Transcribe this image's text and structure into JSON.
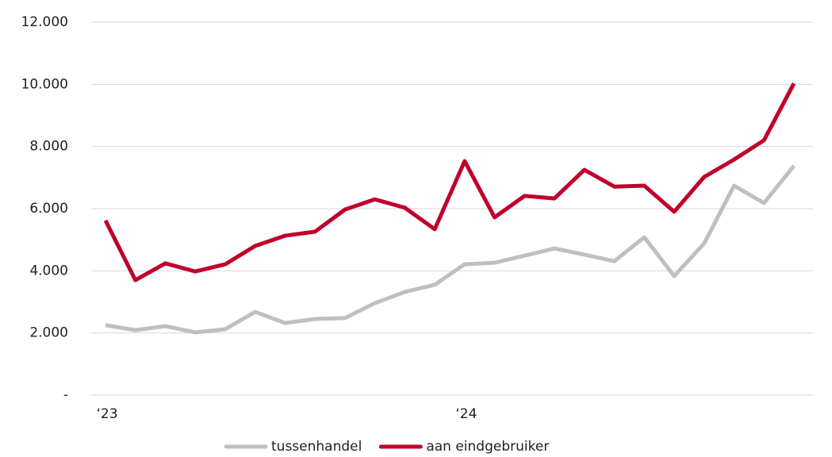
{
  "chart_data": {
    "type": "line",
    "categories": [
      "‘23",
      null,
      null,
      null,
      null,
      null,
      null,
      null,
      null,
      null,
      null,
      null,
      "‘24",
      null,
      null,
      null,
      null,
      null,
      null,
      null,
      null,
      null,
      null,
      null
    ],
    "series": [
      {
        "name": "tussenhandel",
        "color": "#bfbfbf",
        "values": [
          2250,
          2090,
          2220,
          2020,
          2120,
          2680,
          2320,
          2450,
          2480,
          2960,
          3320,
          3550,
          4210,
          4260,
          4490,
          4720,
          4520,
          4310,
          5080,
          3830,
          4880,
          6740,
          6180,
          7380
        ]
      },
      {
        "name": "aan eindgebruiker",
        "color": "#c0002a",
        "values": [
          5620,
          3700,
          4240,
          3980,
          4210,
          4800,
          5130,
          5260,
          5970,
          6300,
          6030,
          5340,
          7530,
          5720,
          6410,
          6330,
          7250,
          6710,
          6740,
          5900,
          7020,
          7580,
          8200,
          10030
        ]
      }
    ],
    "ylim": [
      0,
      12000
    ],
    "yticks": [
      {
        "value": 0,
        "label": "-"
      },
      {
        "value": 2000,
        "label": "2.000"
      },
      {
        "value": 4000,
        "label": "4.000"
      },
      {
        "value": 6000,
        "label": "6.000"
      },
      {
        "value": 8000,
        "label": "8.000"
      },
      {
        "value": 10000,
        "label": "10.000"
      },
      {
        "value": 12000,
        "label": "12.000"
      }
    ],
    "grid": true,
    "legend": "bottom"
  }
}
